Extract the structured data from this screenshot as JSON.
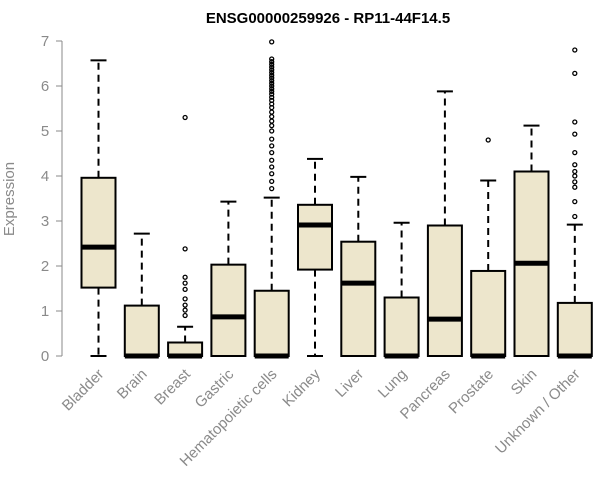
{
  "chart_data": {
    "type": "boxplot",
    "title": "ENSG00000259926 - RP11-44F14.5",
    "xlabel": "",
    "ylabel": "Expression",
    "ylim": [
      0,
      7
    ],
    "yticks": [
      0,
      1,
      2,
      3,
      4,
      5,
      6,
      7
    ],
    "grid": false,
    "colors": {
      "box_fill": "#ede6cc",
      "stroke": "#000000",
      "axis": "#8a8a8a",
      "label": "#8a8a8a"
    },
    "categories": [
      "Bladder",
      "Brain",
      "Breast",
      "Gastric",
      "Hematopoietic cells",
      "Kidney",
      "Liver",
      "Lung",
      "Pancreas",
      "Prostate",
      "Skin",
      "Unknown / Other"
    ],
    "boxes": [
      {
        "category": "Bladder",
        "min": 0,
        "q1": 1.52,
        "median": 2.42,
        "q3": 3.96,
        "max": 6.57,
        "outliers": []
      },
      {
        "category": "Brain",
        "min": 0,
        "q1": 0,
        "median": 0,
        "q3": 1.12,
        "max": 2.72,
        "outliers": []
      },
      {
        "category": "Breast",
        "min": 0,
        "q1": 0,
        "median": 0,
        "q3": 0.3,
        "max": 0.65,
        "outliers": [
          0.9,
          1.02,
          1.13,
          1.27,
          1.48,
          1.62,
          1.75,
          2.38,
          5.3
        ]
      },
      {
        "category": "Gastric",
        "min": 0,
        "q1": 0,
        "median": 0.87,
        "q3": 2.03,
        "max": 3.43,
        "outliers": []
      },
      {
        "category": "Hematopoietic cells",
        "min": 0,
        "q1": 0,
        "median": 0,
        "q3": 1.45,
        "max": 3.52,
        "outliers": [
          3.72,
          3.88,
          4.05,
          4.2,
          4.35,
          4.52,
          4.67,
          4.82,
          5.0,
          5.12,
          5.22,
          5.32,
          5.42,
          5.52,
          5.6,
          5.68,
          5.75,
          5.82,
          5.88,
          5.94,
          6.0,
          6.06,
          6.12,
          6.18,
          6.24,
          6.3,
          6.36,
          6.42,
          6.48,
          6.54,
          6.6,
          6.98
        ]
      },
      {
        "category": "Kidney",
        "min": 0,
        "q1": 1.92,
        "median": 2.91,
        "q3": 3.36,
        "max": 4.38,
        "outliers": []
      },
      {
        "category": "Liver",
        "min": 0,
        "q1": 0,
        "median": 1.62,
        "q3": 2.54,
        "max": 3.98,
        "outliers": []
      },
      {
        "category": "Lung",
        "min": 0,
        "q1": 0,
        "median": 0,
        "q3": 1.3,
        "max": 2.96,
        "outliers": []
      },
      {
        "category": "Pancreas",
        "min": 0,
        "q1": 0,
        "median": 0.82,
        "q3": 2.9,
        "max": 5.88,
        "outliers": []
      },
      {
        "category": "Prostate",
        "min": 0,
        "q1": 0,
        "median": 0,
        "q3": 1.89,
        "max": 3.9,
        "outliers": [
          4.8
        ]
      },
      {
        "category": "Skin",
        "min": 0,
        "q1": 0,
        "median": 2.06,
        "q3": 4.1,
        "max": 5.12,
        "outliers": []
      },
      {
        "category": "Unknown / Other",
        "min": 0,
        "q1": 0,
        "median": 0,
        "q3": 1.18,
        "max": 2.92,
        "outliers": [
          3.1,
          3.43,
          3.75,
          3.87,
          4.0,
          4.1,
          4.25,
          4.52,
          4.93,
          5.2,
          6.28,
          6.8
        ]
      }
    ]
  }
}
